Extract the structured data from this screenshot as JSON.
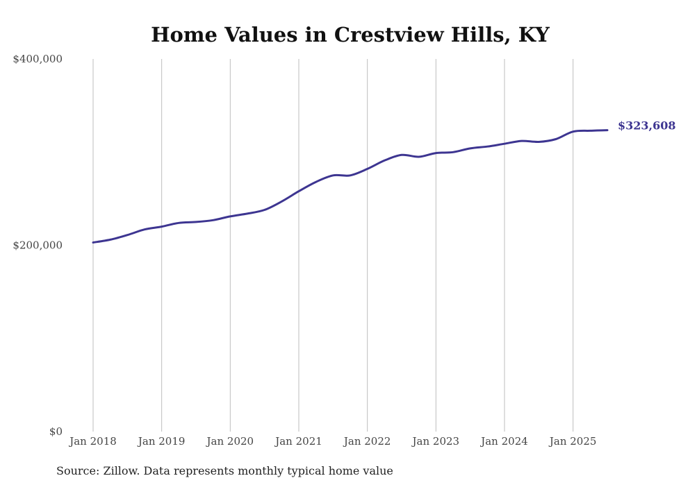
{
  "chart_data": {
    "type": "line",
    "title": "Home Values in Crestview Hills, KY",
    "xlabel": "",
    "ylabel": "",
    "ylim": [
      0,
      400000
    ],
    "y_ticks": [
      {
        "value": 0,
        "label": "$0"
      },
      {
        "value": 200000,
        "label": "$200,000"
      },
      {
        "value": 400000,
        "label": "$400,000"
      }
    ],
    "x_ticks": [
      {
        "value": 2018.0,
        "label": "Jan 2018"
      },
      {
        "value": 2019.0,
        "label": "Jan 2019"
      },
      {
        "value": 2020.0,
        "label": "Jan 2020"
      },
      {
        "value": 2021.0,
        "label": "Jan 2021"
      },
      {
        "value": 2022.0,
        "label": "Jan 2022"
      },
      {
        "value": 2023.0,
        "label": "Jan 2023"
      },
      {
        "value": 2024.0,
        "label": "Jan 2024"
      },
      {
        "value": 2025.0,
        "label": "Jan 2025"
      }
    ],
    "xlim": [
      2018.0,
      2025.5
    ],
    "grid": "vertical",
    "line_color": "#3d3591",
    "series": [
      {
        "points": [
          {
            "x": 2018.0,
            "y": 203000
          },
          {
            "x": 2018.25,
            "y": 206000
          },
          {
            "x": 2018.5,
            "y": 211000
          },
          {
            "x": 2018.75,
            "y": 217000
          },
          {
            "x": 2019.0,
            "y": 220000
          },
          {
            "x": 2019.25,
            "y": 224000
          },
          {
            "x": 2019.5,
            "y": 225000
          },
          {
            "x": 2019.75,
            "y": 227000
          },
          {
            "x": 2020.0,
            "y": 231000
          },
          {
            "x": 2020.25,
            "y": 234000
          },
          {
            "x": 2020.5,
            "y": 238000
          },
          {
            "x": 2020.75,
            "y": 247000
          },
          {
            "x": 2021.0,
            "y": 258000
          },
          {
            "x": 2021.25,
            "y": 268000
          },
          {
            "x": 2021.5,
            "y": 275000
          },
          {
            "x": 2021.75,
            "y": 275000
          },
          {
            "x": 2022.0,
            "y": 282000
          },
          {
            "x": 2022.25,
            "y": 291000
          },
          {
            "x": 2022.5,
            "y": 297000
          },
          {
            "x": 2022.75,
            "y": 295000
          },
          {
            "x": 2023.0,
            "y": 299000
          },
          {
            "x": 2023.25,
            "y": 300000
          },
          {
            "x": 2023.5,
            "y": 304000
          },
          {
            "x": 2023.75,
            "y": 306000
          },
          {
            "x": 2024.0,
            "y": 309000
          },
          {
            "x": 2024.25,
            "y": 312000
          },
          {
            "x": 2024.5,
            "y": 311000
          },
          {
            "x": 2024.75,
            "y": 314000
          },
          {
            "x": 2025.0,
            "y": 322000
          },
          {
            "x": 2025.25,
            "y": 323000
          },
          {
            "x": 2025.5,
            "y": 323608
          }
        ]
      }
    ],
    "end_label": "$323,608",
    "source": "Source: Zillow. Data represents monthly typical home value"
  }
}
